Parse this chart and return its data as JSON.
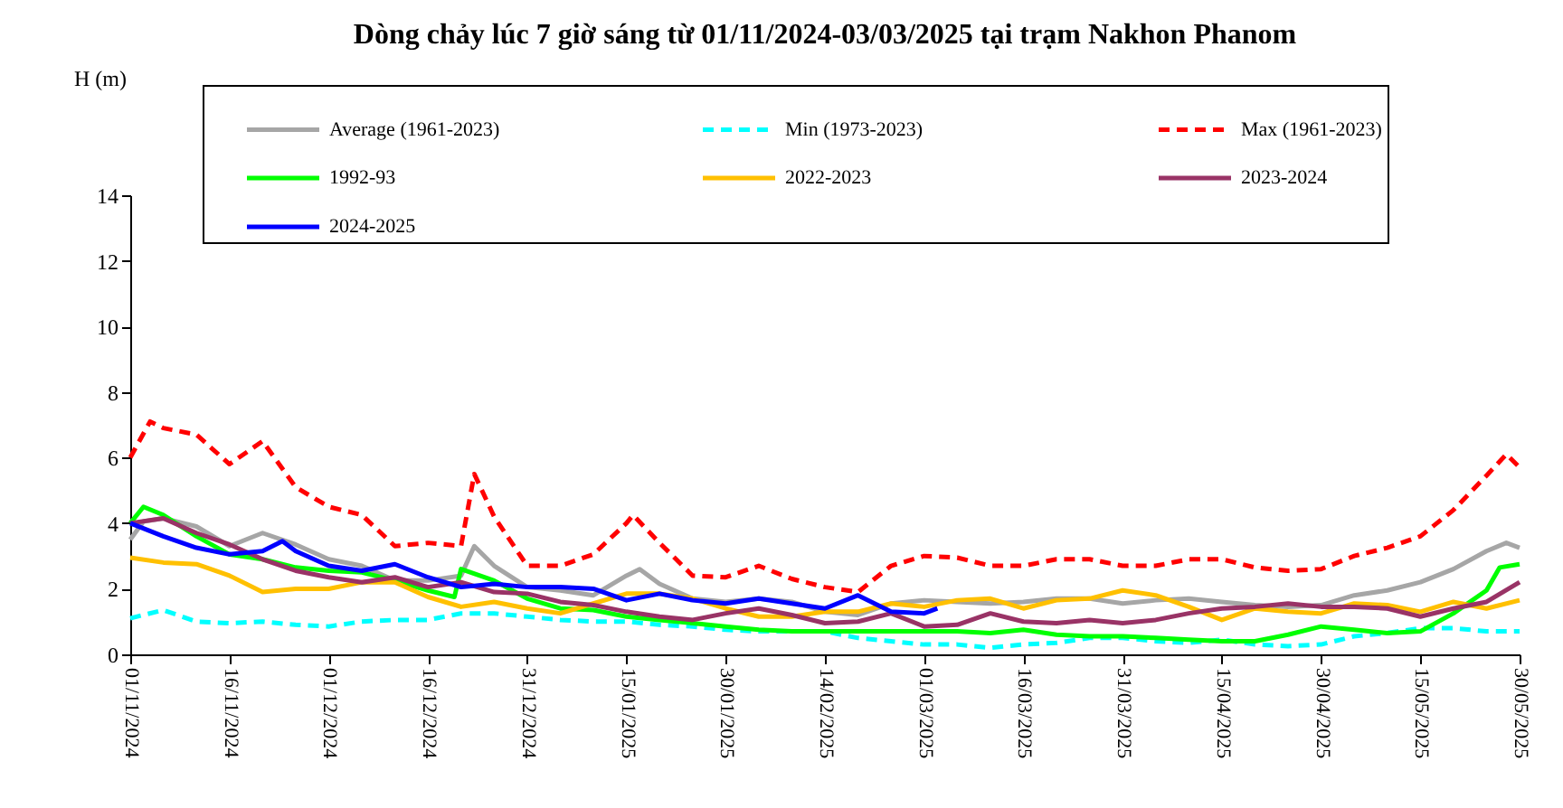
{
  "chart_data": {
    "type": "line",
    "title": "Dòng chảy lúc 7 giờ sáng từ 01/11/2024-03/03/2025 tại trạm Nakhon Phanom",
    "ylabel": "H (m)",
    "legend": "top",
    "x": [
      "2024-11-01",
      "2024-11-06",
      "2024-11-11",
      "2024-11-16",
      "2024-11-21",
      "2024-11-26",
      "2024-12-01",
      "2024-12-06",
      "2024-12-11",
      "2024-12-16",
      "2024-12-21",
      "2024-12-26",
      "2024-12-31",
      "2025-01-05",
      "2025-01-10",
      "2025-01-15",
      "2025-01-20",
      "2025-01-25",
      "2025-01-30",
      "2025-02-04",
      "2025-02-09",
      "2025-02-14",
      "2025-02-19",
      "2025-02-24",
      "2025-03-01",
      "2025-03-06",
      "2025-03-11",
      "2025-03-16",
      "2025-03-21",
      "2025-03-26",
      "2025-03-31",
      "2025-04-05",
      "2025-04-10",
      "2025-04-15",
      "2025-04-20",
      "2025-04-25",
      "2025-04-30",
      "2025-05-05",
      "2025-05-10",
      "2025-05-15",
      "2025-05-20",
      "2025-05-25",
      "2025-05-30"
    ],
    "series": [
      {
        "name": "Average (1961-2023)",
        "color": "#a6a6a6",
        "line_style": "solid",
        "x": [
          "2024-11-01",
          "2024-11-03",
          "2024-11-06",
          "2024-11-11",
          "2024-11-16",
          "2024-11-21",
          "2024-11-26",
          "2024-12-01",
          "2024-12-06",
          "2024-12-11",
          "2024-12-16",
          "2024-12-21",
          "2024-12-23",
          "2024-12-26",
          "2024-12-31",
          "2025-01-05",
          "2025-01-10",
          "2025-01-15",
          "2025-01-17",
          "2025-01-20",
          "2025-01-25",
          "2025-01-30",
          "2025-02-04",
          "2025-02-09",
          "2025-02-14",
          "2025-02-19",
          "2025-02-24",
          "2025-03-01",
          "2025-03-06",
          "2025-03-11",
          "2025-03-16",
          "2025-03-21",
          "2025-03-26",
          "2025-03-31",
          "2025-04-05",
          "2025-04-10",
          "2025-04-15",
          "2025-04-20",
          "2025-04-25",
          "2025-04-30",
          "2025-05-05",
          "2025-05-10",
          "2025-05-15",
          "2025-05-20",
          "2025-05-25",
          "2025-05-28",
          "2025-05-30"
        ],
        "values": [
          3.5,
          4.05,
          4.15,
          3.9,
          3.3,
          3.7,
          3.35,
          2.9,
          2.7,
          2.25,
          2.25,
          2.4,
          3.3,
          2.7,
          2.05,
          1.95,
          1.8,
          2.4,
          2.6,
          2.15,
          1.7,
          1.6,
          1.7,
          1.6,
          1.3,
          1.2,
          1.55,
          1.65,
          1.6,
          1.55,
          1.6,
          1.7,
          1.7,
          1.55,
          1.65,
          1.7,
          1.6,
          1.5,
          1.45,
          1.5,
          1.8,
          1.95,
          2.2,
          2.6,
          3.15,
          3.4,
          3.25
        ]
      },
      {
        "name": "Min (1973-2023)",
        "color": "#00ffff",
        "line_style": "dashed",
        "values": [
          1.1,
          1.35,
          1.0,
          0.95,
          1.0,
          0.9,
          0.85,
          1.0,
          1.05,
          1.05,
          1.25,
          1.25,
          1.15,
          1.05,
          1.0,
          1.0,
          0.9,
          0.85,
          0.75,
          0.7,
          0.7,
          0.7,
          0.5,
          0.4,
          0.3,
          0.3,
          0.2,
          0.3,
          0.35,
          0.5,
          0.5,
          0.4,
          0.35,
          0.45,
          0.3,
          0.25,
          0.3,
          0.55,
          0.65,
          0.8,
          0.8,
          0.7,
          0.7
        ]
      },
      {
        "name": "Max (1961-2023)",
        "color": "#ff0000",
        "line_style": "dashed",
        "x": [
          "2024-11-01",
          "2024-11-04",
          "2024-11-06",
          "2024-11-11",
          "2024-11-16",
          "2024-11-21",
          "2024-11-26",
          "2024-12-01",
          "2024-12-06",
          "2024-12-11",
          "2024-12-16",
          "2024-12-21",
          "2024-12-23",
          "2024-12-26",
          "2024-12-31",
          "2025-01-05",
          "2025-01-10",
          "2025-01-15",
          "2025-01-16",
          "2025-01-20",
          "2025-01-25",
          "2025-01-30",
          "2025-02-04",
          "2025-02-09",
          "2025-02-14",
          "2025-02-19",
          "2025-02-24",
          "2025-03-01",
          "2025-03-06",
          "2025-03-11",
          "2025-03-16",
          "2025-03-21",
          "2025-03-26",
          "2025-03-31",
          "2025-04-05",
          "2025-04-10",
          "2025-04-15",
          "2025-04-20",
          "2025-04-25",
          "2025-04-30",
          "2025-05-05",
          "2025-05-10",
          "2025-05-15",
          "2025-05-20",
          "2025-05-25",
          "2025-05-28",
          "2025-05-30"
        ],
        "values": [
          6.0,
          7.1,
          6.9,
          6.7,
          5.8,
          6.5,
          5.1,
          4.5,
          4.25,
          3.3,
          3.4,
          3.3,
          5.5,
          4.2,
          2.7,
          2.7,
          3.05,
          4.0,
          4.25,
          3.4,
          2.4,
          2.35,
          2.7,
          2.3,
          2.05,
          1.9,
          2.7,
          3.0,
          2.95,
          2.7,
          2.7,
          2.9,
          2.9,
          2.7,
          2.7,
          2.9,
          2.9,
          2.65,
          2.55,
          2.6,
          3.0,
          3.25,
          3.6,
          4.4,
          5.45,
          6.1,
          5.7
        ]
      },
      {
        "name": "1992-93",
        "color": "#00ff00",
        "line_style": "solid",
        "x": [
          "2024-11-01",
          "2024-11-03",
          "2024-11-06",
          "2024-11-11",
          "2024-11-16",
          "2024-11-21",
          "2024-11-26",
          "2024-12-01",
          "2024-12-06",
          "2024-12-11",
          "2024-12-16",
          "2024-12-20",
          "2024-12-21",
          "2024-12-26",
          "2024-12-31",
          "2025-01-05",
          "2025-01-10",
          "2025-01-15",
          "2025-01-20",
          "2025-01-25",
          "2025-01-30",
          "2025-02-04",
          "2025-02-09",
          "2025-02-14",
          "2025-02-19",
          "2025-02-24",
          "2025-03-01",
          "2025-03-06",
          "2025-03-11",
          "2025-03-16",
          "2025-03-21",
          "2025-03-26",
          "2025-03-31",
          "2025-04-05",
          "2025-04-10",
          "2025-04-15",
          "2025-04-20",
          "2025-04-25",
          "2025-04-30",
          "2025-05-05",
          "2025-05-10",
          "2025-05-15",
          "2025-05-20",
          "2025-05-25",
          "2025-05-27",
          "2025-05-30"
        ],
        "values": [
          4.0,
          4.5,
          4.25,
          3.6,
          3.05,
          2.9,
          2.65,
          2.55,
          2.5,
          2.25,
          1.95,
          1.75,
          2.6,
          2.25,
          1.7,
          1.4,
          1.35,
          1.15,
          1.05,
          0.95,
          0.85,
          0.75,
          0.7,
          0.7,
          0.7,
          0.7,
          0.7,
          0.7,
          0.65,
          0.75,
          0.6,
          0.55,
          0.55,
          0.5,
          0.45,
          0.4,
          0.4,
          0.6,
          0.85,
          0.75,
          0.65,
          0.7,
          1.25,
          1.95,
          2.65,
          2.75
        ]
      },
      {
        "name": "2022-2023",
        "color": "#ffc000",
        "line_style": "solid",
        "values": [
          2.95,
          2.8,
          2.75,
          2.4,
          1.9,
          2.0,
          2.0,
          2.2,
          2.2,
          1.75,
          1.45,
          1.6,
          1.4,
          1.25,
          1.55,
          1.85,
          1.85,
          1.7,
          1.4,
          1.15,
          1.15,
          1.3,
          1.3,
          1.55,
          1.45,
          1.65,
          1.7,
          1.4,
          1.65,
          1.7,
          1.95,
          1.8,
          1.45,
          1.05,
          1.4,
          1.3,
          1.25,
          1.55,
          1.5,
          1.3,
          1.6,
          1.4,
          1.65
        ]
      },
      {
        "name": "2023-2024",
        "color": "#993366",
        "line_style": "solid",
        "values": [
          4.0,
          4.15,
          3.7,
          3.35,
          2.9,
          2.55,
          2.35,
          2.2,
          2.35,
          2.05,
          2.2,
          1.9,
          1.85,
          1.6,
          1.5,
          1.3,
          1.15,
          1.05,
          1.25,
          1.4,
          1.2,
          0.95,
          1.0,
          1.25,
          0.85,
          0.9,
          1.25,
          1.0,
          0.95,
          1.05,
          0.95,
          1.05,
          1.25,
          1.4,
          1.45,
          1.55,
          1.45,
          1.45,
          1.4,
          1.15,
          1.4,
          1.6,
          2.2
        ]
      },
      {
        "name": "2024-2025",
        "color": "#0000ff",
        "line_style": "solid",
        "x": [
          "2024-11-01",
          "2024-11-06",
          "2024-11-11",
          "2024-11-16",
          "2024-11-21",
          "2024-11-24",
          "2024-11-26",
          "2024-12-01",
          "2024-12-06",
          "2024-12-11",
          "2024-12-16",
          "2024-12-21",
          "2024-12-26",
          "2024-12-31",
          "2025-01-05",
          "2025-01-10",
          "2025-01-15",
          "2025-01-20",
          "2025-01-25",
          "2025-01-30",
          "2025-02-04",
          "2025-02-09",
          "2025-02-14",
          "2025-02-19",
          "2025-02-24",
          "2025-03-01",
          "2025-03-03"
        ],
        "values": [
          4.0,
          3.6,
          3.25,
          3.05,
          3.15,
          3.45,
          3.15,
          2.7,
          2.55,
          2.75,
          2.35,
          2.05,
          2.15,
          2.05,
          2.05,
          2.0,
          1.65,
          1.85,
          1.65,
          1.55,
          1.7,
          1.55,
          1.4,
          1.8,
          1.3,
          1.25,
          1.4
        ]
      }
    ],
    "xlim": [
      "2024-11-01",
      "2025-05-30"
    ],
    "xticks": [
      {
        "value": "2024-11-01",
        "label": "01/11/2024"
      },
      {
        "value": "2024-11-16",
        "label": "16/11/2024"
      },
      {
        "value": "2024-12-01",
        "label": "01/12/2024"
      },
      {
        "value": "2024-12-16",
        "label": "16/12/2024"
      },
      {
        "value": "2024-12-31",
        "label": "31/12/2024"
      },
      {
        "value": "2025-01-15",
        "label": "15/01/2025"
      },
      {
        "value": "2025-01-30",
        "label": "30/01/2025"
      },
      {
        "value": "2025-02-14",
        "label": "14/02/2025"
      },
      {
        "value": "2025-03-01",
        "label": "01/03/2025"
      },
      {
        "value": "2025-03-16",
        "label": "16/03/2025"
      },
      {
        "value": "2025-03-31",
        "label": "31/03/2025"
      },
      {
        "value": "2025-04-15",
        "label": "15/04/2025"
      },
      {
        "value": "2025-04-30",
        "label": "30/04/2025"
      },
      {
        "value": "2025-05-15",
        "label": "15/05/2025"
      },
      {
        "value": "2025-05-30",
        "label": "30/05/2025"
      }
    ],
    "ylim": [
      0,
      14
    ],
    "yticks": [
      0,
      2,
      4,
      6,
      8,
      10,
      12,
      14
    ]
  }
}
